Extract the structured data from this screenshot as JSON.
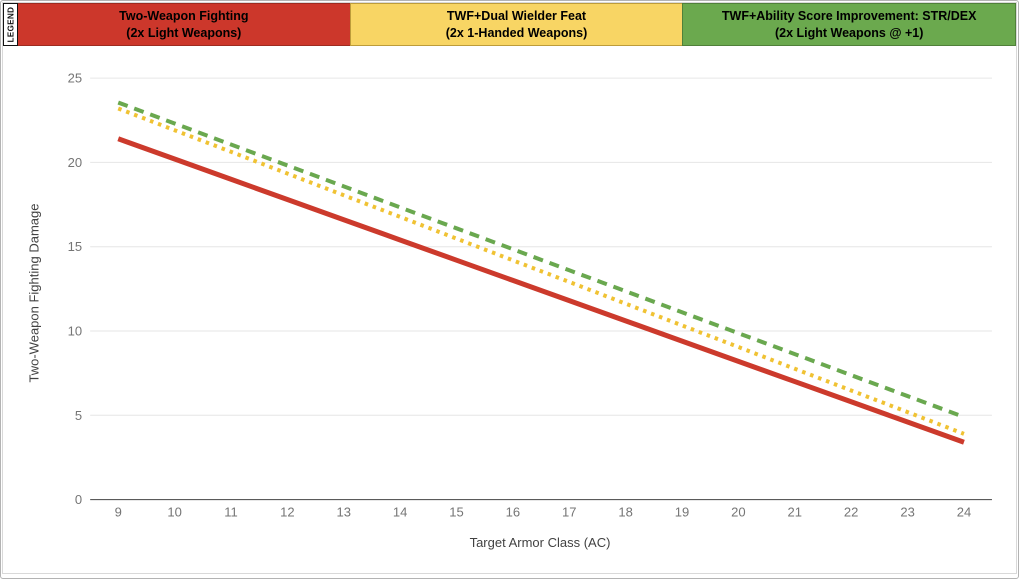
{
  "page": {
    "background": "#ffffff",
    "outer_border": "#b3b3b3",
    "inner_border": "#d9d9d9"
  },
  "legend": {
    "label": "LEGEND",
    "items": [
      {
        "line1": "Two-Weapon Fighting",
        "line2": "(2x Light Weapons)",
        "fill": "#cc372b",
        "border": "#9e2b20"
      },
      {
        "line1": "TWF+Dual Wielder Feat",
        "line2": "(2x 1-Handed Weapons)",
        "fill": "#f8d564",
        "border": "#bd9c3a"
      },
      {
        "line1": "TWF+Ability Score Improvement: STR/DEX",
        "line2": "(2x Light Weapons @ +1)",
        "fill": "#6ba94e",
        "border": "#50803a"
      }
    ]
  },
  "chart_data": {
    "type": "line",
    "title": "",
    "xlabel": "Target Armor Class (AC)",
    "ylabel": "Two-Weapon Fighting Damage",
    "x": [
      9,
      10,
      11,
      12,
      13,
      14,
      15,
      16,
      17,
      18,
      19,
      20,
      21,
      22,
      23,
      24
    ],
    "y_ticks": [
      0,
      5,
      10,
      15,
      20,
      25
    ],
    "ylim": [
      0,
      25
    ],
    "grid": true,
    "gridline_color": "#e6e6e6",
    "axis_line_color": "#424242",
    "tick_label_color": "#757575",
    "axis_title_color": "#424242",
    "legend_position": "top",
    "series": [
      {
        "name": "Two-Weapon Fighting (2x Light Weapons)",
        "style": "solid",
        "width": 5,
        "color": "#cc3a2c",
        "values": [
          21.4,
          20.2,
          19.0,
          17.8,
          16.6,
          15.4,
          14.2,
          13.0,
          11.8,
          10.6,
          9.4,
          8.2,
          7.0,
          5.8,
          4.6,
          3.4
        ]
      },
      {
        "name": "TWF+Dual Wielder Feat (2x 1-Handed Weapons)",
        "style": "dotted",
        "width": 4,
        "color": "#f0c233",
        "values": [
          23.2,
          21.91,
          20.63,
          19.34,
          18.05,
          16.77,
          15.48,
          14.19,
          12.91,
          11.62,
          10.33,
          9.05,
          7.76,
          6.47,
          5.19,
          3.9
        ]
      },
      {
        "name": "TWF+Ability Score Improvement: STR/DEX (2x Light Weapons @ +1)",
        "style": "dashed",
        "width": 4,
        "color": "#6aa84f",
        "values": [
          23.55,
          22.31,
          21.06,
          19.82,
          18.58,
          17.33,
          16.09,
          14.85,
          13.6,
          12.36,
          11.11,
          9.87,
          8.63,
          7.38,
          6.14,
          4.9
        ]
      }
    ]
  }
}
